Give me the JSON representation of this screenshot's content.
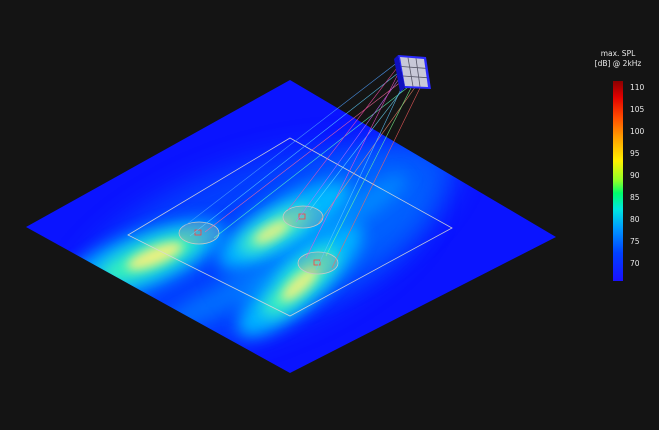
{
  "legend": {
    "title_line1": "max. SPL",
    "title_line2": "[dB] @ 2kHz",
    "ticks": [
      "110",
      "105",
      "100",
      "95",
      "90",
      "85",
      "80",
      "75",
      "70"
    ]
  },
  "colors": {
    "background": "#141414",
    "floor_base": "#0a14ff",
    "hot": "#ffe600",
    "mid": "#00e0c0",
    "outline": "#d8d8d8"
  },
  "icons": {
    "speaker": "speaker-array-icon"
  }
}
